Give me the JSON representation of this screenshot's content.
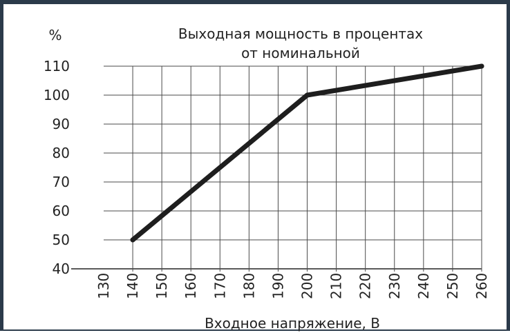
{
  "chart_data": {
    "type": "line",
    "title_line1": "Выходная мощность в процентах",
    "title_line2": "от номинальной",
    "unit_label": "%",
    "xlabel": "Входное напряжение, В",
    "xlim": [
      130,
      260
    ],
    "ylim": [
      40,
      110
    ],
    "x_ticks": [
      130,
      140,
      150,
      160,
      170,
      180,
      190,
      200,
      210,
      220,
      230,
      240,
      250,
      260
    ],
    "y_ticks": [
      40,
      50,
      60,
      70,
      80,
      90,
      100,
      110
    ],
    "grid": true,
    "series": [
      {
        "x": [
          140,
          200,
          260
        ],
        "y": [
          50,
          100,
          110
        ]
      }
    ]
  },
  "colors": {
    "frame": "#2b3a4a",
    "line": "#1e1e1e",
    "grid": "#4a4a4a",
    "text": "#222222"
  }
}
